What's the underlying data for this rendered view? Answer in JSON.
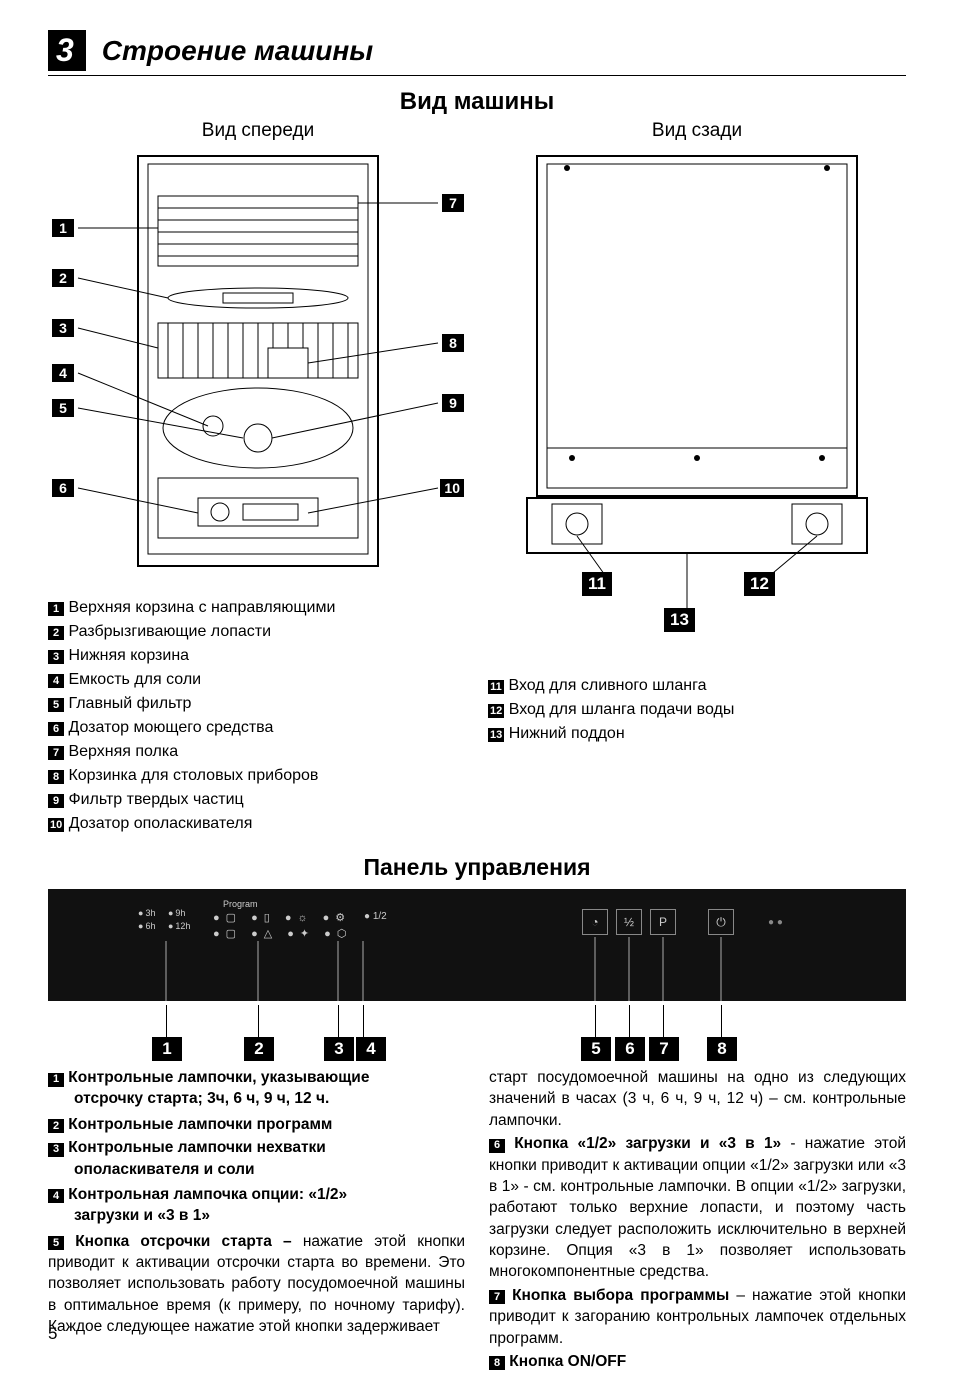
{
  "section": {
    "number": "3",
    "title": "Строение машины"
  },
  "views": {
    "title": "Вид машины",
    "front": "Вид спереди",
    "rear": "Вид сзади"
  },
  "front_labels": {
    "l1": "1",
    "l2": "2",
    "l3": "3",
    "l4": "4",
    "l5": "5",
    "l6": "6",
    "l7": "7",
    "l8": "8",
    "l9": "9",
    "l10": "10"
  },
  "rear_labels": {
    "l11": "11",
    "l12": "12",
    "l13": "13"
  },
  "parts_left": [
    {
      "n": "1",
      "t": "Верхняя корзина с направляющими"
    },
    {
      "n": "2",
      "t": "Разбрызгивающие лопасти"
    },
    {
      "n": "3",
      "t": "Нижняя корзина"
    },
    {
      "n": "4",
      "t": "Емкость для соли"
    },
    {
      "n": "5",
      "t": "Главный фильтр"
    },
    {
      "n": "6",
      "t": "Дозатор моющего средства"
    },
    {
      "n": "7",
      "t": "Верхняя полка"
    },
    {
      "n": "8",
      "t": "Корзинка для столовых приборов"
    },
    {
      "n": "9",
      "t": "Фильтр твердых частиц"
    },
    {
      "n": "10",
      "t": "Дозатор ополаскивателя"
    }
  ],
  "parts_right": [
    {
      "n": "11",
      "t": "Вход для сливного шланга"
    },
    {
      "n": "12",
      "t": "Вход для шланга подачи воды"
    },
    {
      "n": "13",
      "t": "Нижний поддон"
    }
  ],
  "panel": {
    "title": "Панель управления",
    "delay_labels": [
      "3h",
      "9h",
      "6h",
      "12h"
    ],
    "program_word": "Program",
    "half": "1/2",
    "callouts": {
      "c1": "1",
      "c2": "2",
      "c3": "3",
      "c4": "4",
      "c5": "5",
      "c6": "6",
      "c7": "7",
      "c8": "8"
    }
  },
  "body_left": [
    {
      "n": "1",
      "head": "Контрольные лампочки, указывающие",
      "cont": "отсрочку старта; 3ч, 6 ч, 9 ч, 12 ч."
    },
    {
      "n": "2",
      "head": "Контрольные лампочки программ"
    },
    {
      "n": "3",
      "head": "Контрольные лампочки нехватки",
      "cont": "ополаскивателя и соли"
    },
    {
      "n": "4",
      "head": "Контрольная лампочка опции: «1/2»",
      "cont": "загрузки и «3 в 1»"
    },
    {
      "n": "5",
      "head": "Кнопка отсрочки старта –",
      "text": " нажатие этой кнопки приводит к активации отсрочки старта во времени. Это позволяет использовать работу посудомоечной машины в оптимальное время (к примеру, по ночному тарифу). Каждое следующее нажатие этой кнопки задерживает"
    }
  ],
  "body_right_intro": "старт посудомоечной машины на одно из следующих значений  в часах (3 ч, 6 ч, 9 ч, 12 ч) – см. контрольные лампочки.",
  "body_right": [
    {
      "n": "6",
      "head": "Кнопка «1/2» загрузки и «3 в 1»",
      "text": " - нажатие этой кнопки приводит к активации опции «1/2» загрузки или «3 в 1» - см. контрольные лампочки. В опции «1/2» загрузки, работают только верхние лопасти, и поэтому часть загрузки следует расположить исключительно в верхней корзине. Опция «3 в 1» позволяет использовать многокомпонентные средства."
    },
    {
      "n": "7",
      "head": "Кнопка выбора программы",
      "text": " – нажатие этой кнопки приводит к загоранию контрольных лампочек отдельных программ."
    },
    {
      "n": "8",
      "head": "Кнопка  ON/OFF"
    }
  ],
  "page_number": "5",
  "colors": {
    "badge_bg": "#000000",
    "badge_fg": "#ffffff",
    "panel_bg": "#111111"
  }
}
